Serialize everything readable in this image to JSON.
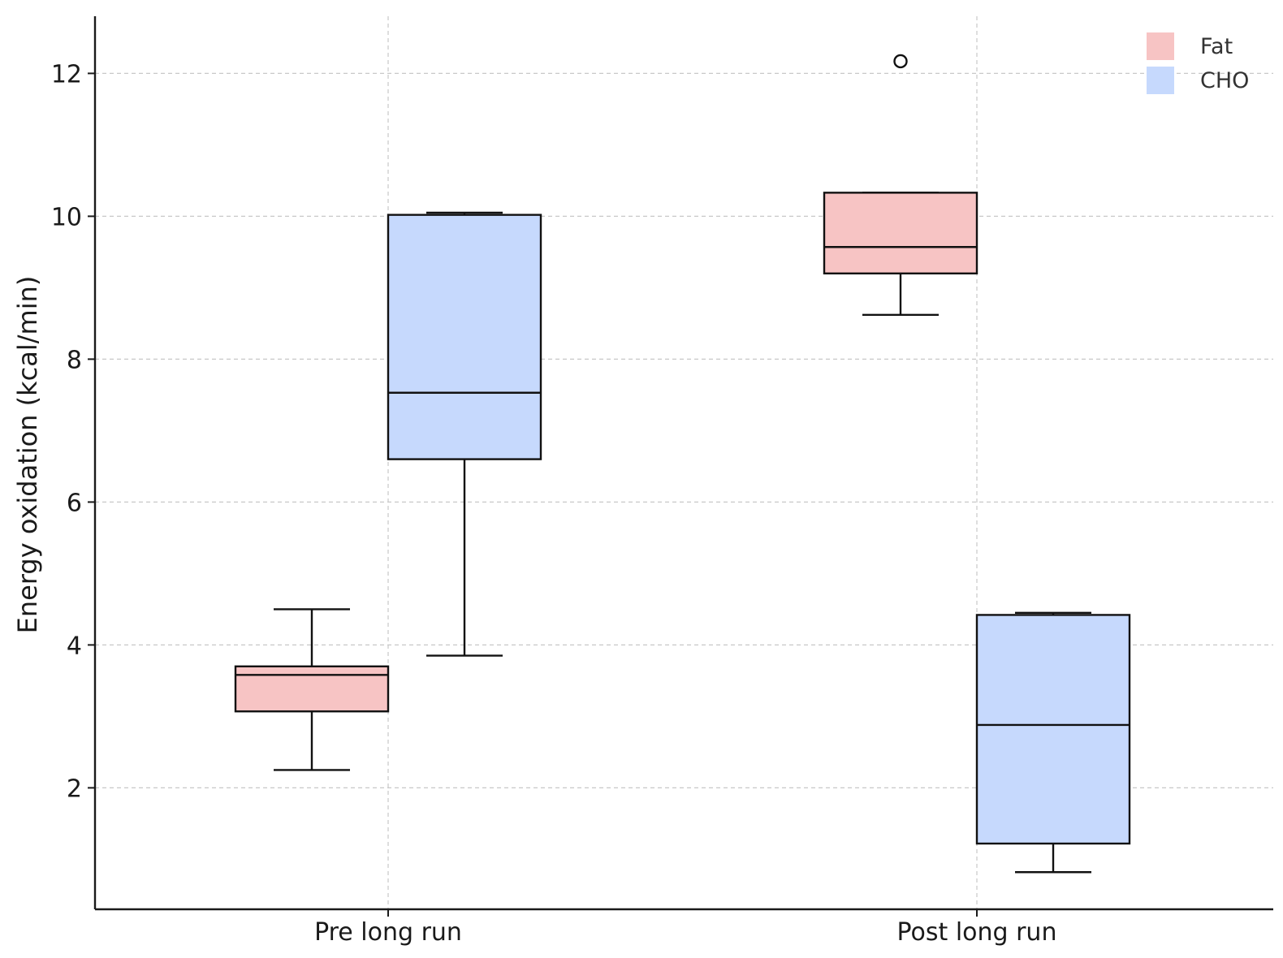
{
  "chart_data": {
    "type": "box",
    "title": "",
    "xlabel": "",
    "ylabel": "Energy oxidation (kcal/min)",
    "categories": [
      "Pre long run",
      "Post long run"
    ],
    "ylim": [
      0.3,
      12.8
    ],
    "yticks": [
      2,
      4,
      6,
      8,
      10,
      12
    ],
    "grid": true,
    "legend_position": "top-right",
    "series": [
      {
        "name": "Fat",
        "color": "#f7c4c4",
        "boxes": [
          {
            "whisker_low": 2.25,
            "q1": 3.07,
            "median": 3.58,
            "q3": 3.7,
            "whisker_high": 4.5,
            "outliers": []
          },
          {
            "whisker_low": 8.62,
            "q1": 9.2,
            "median": 9.57,
            "q3": 10.33,
            "whisker_high": 10.33,
            "outliers": [
              12.17
            ]
          }
        ]
      },
      {
        "name": "CHO",
        "color": "#c6d9fd",
        "boxes": [
          {
            "whisker_low": 3.85,
            "q1": 6.6,
            "median": 7.53,
            "q3": 10.02,
            "whisker_high": 10.05,
            "outliers": []
          },
          {
            "whisker_low": 0.82,
            "q1": 1.22,
            "median": 2.88,
            "q3": 4.42,
            "whisker_high": 4.45,
            "outliers": []
          }
        ]
      }
    ]
  }
}
